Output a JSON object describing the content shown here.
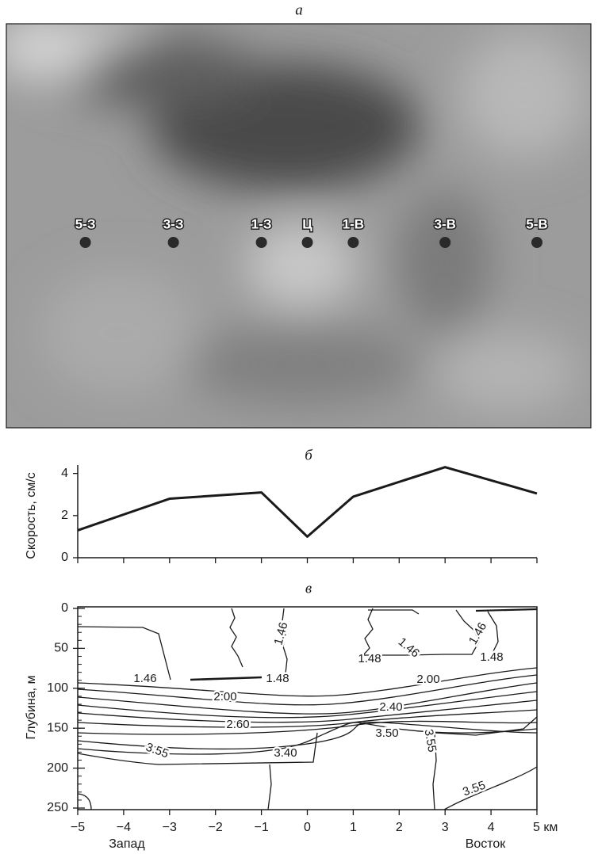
{
  "chart_data": [
    {
      "type": "stations",
      "title": "а",
      "stations": [
        "5-З",
        "3-З",
        "1-З",
        "Ц",
        "1-В",
        "3-В",
        "5-В"
      ],
      "x": [
        -5,
        -3,
        -1,
        0,
        1,
        3,
        5
      ],
      "xlim": [
        -5,
        5
      ],
      "color": "#2a2a2a"
    },
    {
      "type": "line",
      "title": "б",
      "ylabel": "Скорость, см/с",
      "x": [
        -5,
        -3,
        -1,
        0,
        1,
        3,
        5
      ],
      "values": [
        1.3,
        2.8,
        3.1,
        1.0,
        2.9,
        4.3,
        3.05
      ],
      "xlim": [
        -5,
        5
      ],
      "xticks": [
        -5,
        -4,
        -3,
        -2,
        -1,
        0,
        1,
        2,
        3,
        4,
        5
      ],
      "ylim": [
        0,
        4.4
      ],
      "yticks": [
        0,
        2,
        4
      ],
      "color": "#1a1a1a"
    },
    {
      "type": "contour",
      "title": "в",
      "ylabel": "Глубина, м",
      "xlabel_left": "Запад",
      "xlabel_right": "Восток",
      "xlim": [
        -5,
        5
      ],
      "ylim": [
        0,
        250
      ],
      "y_inverted": true,
      "xticks": [
        {
          "value": -5,
          "label": "−5"
        },
        {
          "value": -4,
          "label": "−4"
        },
        {
          "value": -3,
          "label": "−3"
        },
        {
          "value": -2,
          "label": "−2"
        },
        {
          "value": -1,
          "label": "−1"
        },
        0,
        1,
        2,
        3,
        4,
        {
          "value": 5,
          "label": "5 км"
        }
      ],
      "yticks": [
        0,
        50,
        100,
        150,
        200,
        250
      ],
      "contour_labels": [
        1.46,
        1.46,
        1.46,
        1.48,
        1.48,
        1.46,
        1.48,
        {
          "value": 2,
          "label": "2.00"
        },
        {
          "value": 2,
          "label": "2:00"
        },
        {
          "value": 2.4,
          "label": "2.40"
        },
        {
          "value": 2.6,
          "label": "2.60"
        },
        {
          "value": 3.5,
          "label": "3.50"
        },
        {
          "value": 3.4,
          "label": "3.40"
        },
        3.55,
        3.55,
        3.55
      ]
    }
  ]
}
